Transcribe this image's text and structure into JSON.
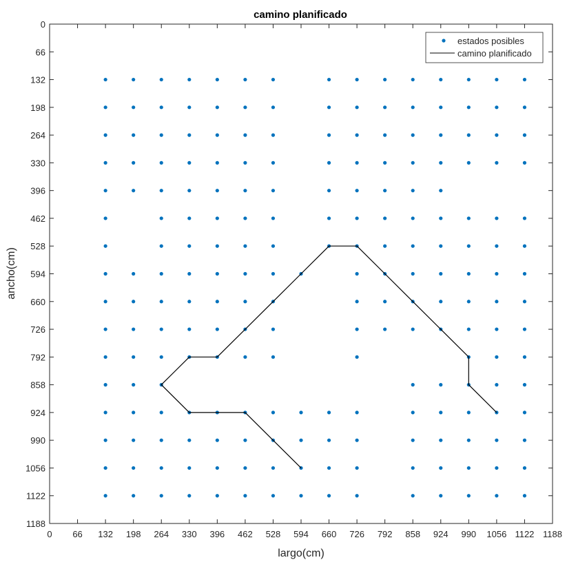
{
  "chart_data": {
    "type": "scatter",
    "title": "camino planificado",
    "xlabel": "largo(cm)",
    "ylabel": "ancho(cm)",
    "xlim": [
      0,
      1188
    ],
    "ylim": [
      0,
      1188
    ],
    "y_reversed": true,
    "x_ticks": [
      0,
      66,
      132,
      198,
      264,
      330,
      396,
      462,
      528,
      594,
      660,
      726,
      792,
      858,
      924,
      990,
      1056,
      1122,
      1188
    ],
    "y_ticks": [
      0,
      66,
      132,
      198,
      264,
      330,
      396,
      462,
      528,
      594,
      660,
      726,
      792,
      858,
      924,
      990,
      1056,
      1122,
      1188
    ],
    "grid": false,
    "legend_position": "top-right",
    "colors": {
      "points": "#0072BD",
      "path": "#000000"
    },
    "series": [
      {
        "name": "estados posibles",
        "type": "scatter",
        "rows": [
          {
            "y": 132,
            "x": [
              132,
              198,
              264,
              330,
              396,
              462,
              528,
              660,
              726,
              792,
              858,
              924,
              990,
              1056,
              1122
            ]
          },
          {
            "y": 198,
            "x": [
              132,
              198,
              264,
              330,
              396,
              462,
              528,
              660,
              726,
              792,
              858,
              924,
              990,
              1056,
              1122
            ]
          },
          {
            "y": 264,
            "x": [
              132,
              198,
              264,
              330,
              396,
              462,
              528,
              660,
              726,
              792,
              858,
              924,
              990,
              1056,
              1122
            ]
          },
          {
            "y": 330,
            "x": [
              132,
              198,
              264,
              330,
              396,
              462,
              528,
              660,
              726,
              792,
              858,
              924,
              990,
              1056,
              1122
            ]
          },
          {
            "y": 396,
            "x": [
              132,
              198,
              264,
              330,
              396,
              462,
              528,
              660,
              726,
              792,
              858,
              924
            ]
          },
          {
            "y": 462,
            "x": [
              132,
              264,
              330,
              396,
              462,
              528,
              660,
              726,
              792,
              858,
              924,
              990,
              1056,
              1122
            ]
          },
          {
            "y": 528,
            "x": [
              132,
              264,
              330,
              396,
              462,
              528,
              660,
              726,
              792,
              858,
              924,
              990,
              1056,
              1122
            ]
          },
          {
            "y": 594,
            "x": [
              132,
              198,
              264,
              330,
              396,
              462,
              528,
              594,
              726,
              792,
              858,
              924,
              990,
              1056,
              1122
            ]
          },
          {
            "y": 660,
            "x": [
              132,
              198,
              264,
              330,
              396,
              462,
              528,
              726,
              792,
              858,
              924,
              990,
              1056,
              1122
            ]
          },
          {
            "y": 726,
            "x": [
              132,
              198,
              264,
              330,
              396,
              462,
              528,
              726,
              792,
              858,
              924,
              990,
              1056,
              1122
            ]
          },
          {
            "y": 792,
            "x": [
              132,
              198,
              264,
              330,
              396,
              462,
              528,
              726,
              990,
              1056,
              1122
            ]
          },
          {
            "y": 858,
            "x": [
              132,
              198,
              264,
              858,
              924,
              990,
              1056,
              1122
            ]
          },
          {
            "y": 924,
            "x": [
              132,
              198,
              264,
              330,
              396,
              462,
              528,
              594,
              660,
              726,
              858,
              924,
              990,
              1056,
              1122
            ]
          },
          {
            "y": 990,
            "x": [
              132,
              198,
              264,
              330,
              396,
              462,
              528,
              594,
              660,
              726,
              858,
              924,
              990,
              1056,
              1122
            ]
          },
          {
            "y": 1056,
            "x": [
              132,
              198,
              264,
              330,
              396,
              462,
              528,
              594,
              660,
              726,
              858,
              924,
              990,
              1056,
              1122
            ]
          },
          {
            "y": 1122,
            "x": [
              132,
              198,
              264,
              330,
              396,
              462,
              528,
              594,
              660,
              726,
              858,
              924,
              990,
              1056,
              1122
            ]
          }
        ]
      },
      {
        "name": "camino planificado",
        "type": "line",
        "points": [
          [
            594,
            1056
          ],
          [
            528,
            990
          ],
          [
            462,
            924
          ],
          [
            396,
            924
          ],
          [
            330,
            924
          ],
          [
            264,
            858
          ],
          [
            330,
            792
          ],
          [
            396,
            792
          ],
          [
            462,
            726
          ],
          [
            528,
            660
          ],
          [
            594,
            594
          ],
          [
            660,
            528
          ],
          [
            726,
            528
          ],
          [
            792,
            594
          ],
          [
            858,
            660
          ],
          [
            924,
            726
          ],
          [
            990,
            792
          ],
          [
            990,
            858
          ],
          [
            1056,
            924
          ]
        ]
      }
    ]
  }
}
